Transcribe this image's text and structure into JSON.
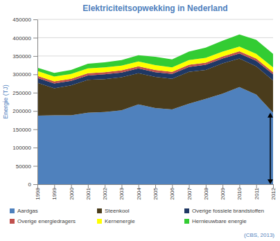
{
  "chart_data": {
    "type": "area",
    "title": "Elektriciteitsopwekking in Nederland",
    "y_label": "Energie (TJ)",
    "annotations": [
      "(CBS, 2013)"
    ],
    "categories": [
      "1998",
      "1999",
      "2000",
      "2001",
      "2002",
      "2003",
      "2004",
      "2005",
      "2006",
      "2007",
      "2008",
      "2009",
      "2010",
      "2011",
      "2012"
    ],
    "series": [
      {
        "name": "Aardgas",
        "color": "#4f81bd",
        "values": [
          187000,
          188000,
          188000,
          195000,
          197000,
          202000,
          218000,
          208000,
          204000,
          220000,
          233000,
          247000,
          265000,
          245000,
          195000
        ]
      },
      {
        "name": "Steenkool",
        "color": "#4a3c1c",
        "values": [
          90000,
          74000,
          82000,
          90000,
          90000,
          90000,
          85000,
          85000,
          84000,
          87000,
          79000,
          83000,
          78000,
          77000,
          88000
        ]
      },
      {
        "name": "Overige fossiele brandstoffen",
        "color": "#1f3864",
        "values": [
          13000,
          13000,
          12000,
          12000,
          13000,
          13000,
          13000,
          13000,
          13000,
          13000,
          14000,
          13000,
          14000,
          15000,
          17000
        ]
      },
      {
        "name": "Overige energiedragers",
        "color": "#c0504d",
        "values": [
          6000,
          6000,
          6000,
          6000,
          6000,
          6000,
          6000,
          6000,
          6000,
          6000,
          6000,
          6000,
          6000,
          6000,
          6000
        ]
      },
      {
        "name": "Kernenergie",
        "color": "#ffff00",
        "values": [
          13000,
          13000,
          13000,
          13000,
          13000,
          13000,
          13000,
          13000,
          12000,
          13000,
          13000,
          13000,
          13000,
          13000,
          13000
        ]
      },
      {
        "name": "Hernieuwbare energie",
        "color": "#33cc33",
        "values": [
          9000,
          10000,
          11000,
          13000,
          14000,
          15000,
          17000,
          23000,
          22000,
          23000,
          28000,
          30000,
          33000,
          38000,
          37000
        ]
      }
    ],
    "ylim": [
      0,
      450000
    ],
    "yticks": [
      0,
      50000,
      100000,
      150000,
      200000,
      250000,
      300000,
      350000,
      400000,
      450000
    ],
    "stacked": true,
    "grid": true,
    "legend": "bottom"
  }
}
